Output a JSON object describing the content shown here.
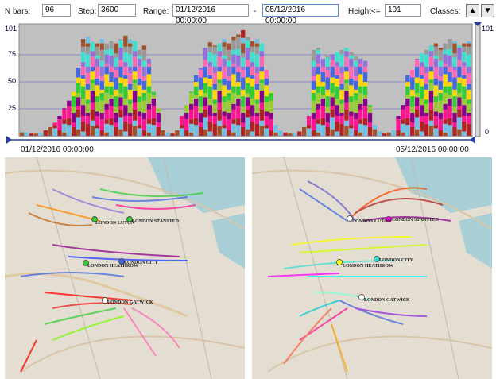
{
  "toolbar": {
    "nbars_label": "N bars:",
    "nbars_value": "96",
    "step_label": "Step:",
    "step_value": "3600",
    "range_label": "Range:",
    "range_start": "01/12/2016 00:00:00",
    "range_sep": "-",
    "range_end": "05/12/2016 00:00:00",
    "height_label": "Height<=",
    "height_value": "101",
    "classes_label": "Classes:",
    "up_label": "▲",
    "down_label": "▼"
  },
  "chart": {
    "y_ticks": [
      "101",
      "75",
      "50",
      "25"
    ],
    "right_top": "101",
    "right_bottom": "0",
    "start_date": "01/12/2016 00:00:00",
    "end_date": "05/12/2016 00:00:00"
  },
  "chart_data": {
    "type": "bar",
    "stacked": true,
    "ylim": [
      0,
      101
    ],
    "y_ticks": [
      25,
      50,
      75,
      101
    ],
    "bar_count": 96,
    "x_range": [
      "01/12/2016 00:00:00",
      "05/12/2016 00:00:00"
    ],
    "colors": [
      "#a0522d",
      "#6ec1e4",
      "#b22222",
      "#ff1493",
      "#8b008b",
      "#9acd32",
      "#32cd32",
      "#ffd700",
      "#4169e1",
      "#ff69b4",
      "#9370db",
      "#40e0d0",
      "#999999"
    ],
    "totals": [
      4,
      3,
      2,
      2,
      3,
      5,
      8,
      12,
      18,
      25,
      32,
      40,
      62,
      88,
      90,
      85,
      84,
      88,
      84,
      86,
      84,
      88,
      91,
      88,
      86,
      78,
      82,
      70,
      40,
      25,
      5,
      3,
      2,
      5,
      18,
      28,
      40,
      55,
      62,
      80,
      85,
      82,
      84,
      88,
      84,
      90,
      92,
      96,
      90,
      86,
      88,
      84,
      60,
      40,
      10,
      5,
      3,
      2,
      2,
      4,
      8,
      18,
      78,
      80,
      70,
      72,
      74,
      76,
      78,
      80,
      76,
      72,
      70,
      68,
      28,
      10,
      4,
      2,
      3,
      5,
      18,
      28,
      55,
      60,
      70,
      75,
      78,
      82,
      84,
      80,
      84,
      88,
      86,
      82,
      84,
      86
    ]
  },
  "maps": {
    "left": {
      "airports": [
        "LONDON LUTON",
        "LONDON STANSTED",
        "LONDON HEATHROW",
        "LONDON CITY",
        "LONDON GATWICK"
      ]
    },
    "right": {
      "airports": [
        "LONDON LUTON",
        "LONDON STANSTED",
        "LONDON HEATHROW",
        "LONDON CITY",
        "LONDON GATWICK"
      ]
    }
  }
}
